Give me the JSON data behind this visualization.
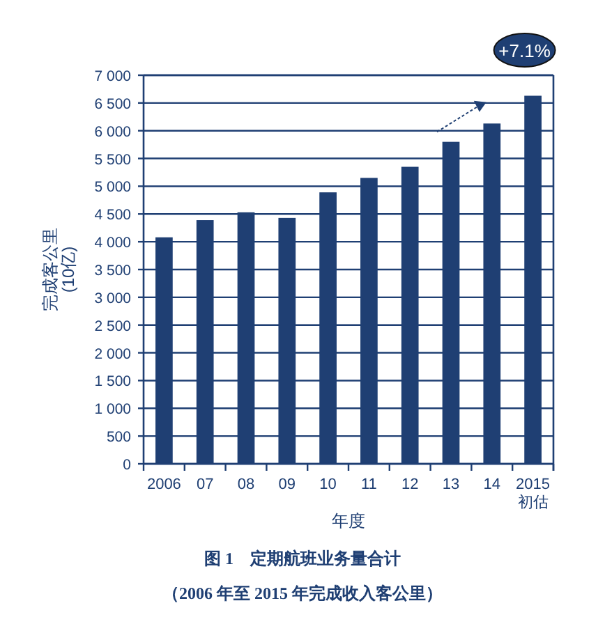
{
  "chart_data": {
    "type": "bar",
    "title": "图 1　定期航班业务量合计",
    "subtitle": "（2006 年至 2015 年完成收入客公里）",
    "xlabel": "年度",
    "ylabel": "完成客公里\n(10亿)",
    "categories": [
      "2006",
      "07",
      "08",
      "09",
      "10",
      "11",
      "12",
      "13",
      "14",
      "2015\n初估"
    ],
    "series": [
      {
        "color": "#1f3f73",
        "values": [
          4080,
          4390,
          4530,
          4430,
          4890,
          5150,
          5350,
          5800,
          6130,
          6630
        ]
      }
    ],
    "ylim": [
      0,
      7000
    ],
    "yticks": [
      0,
      500,
      {
        "value": 1000,
        "label": "1 000"
      },
      {
        "value": 1500,
        "label": "1 500"
      },
      {
        "value": 2000,
        "label": "2 000"
      },
      {
        "value": 2500,
        "label": "2 500"
      },
      {
        "value": 3000,
        "label": "3 000"
      },
      {
        "value": 3500,
        "label": "3 500"
      },
      {
        "value": 4000,
        "label": "4 000"
      },
      {
        "value": 4500,
        "label": "4 500"
      },
      {
        "value": 5000,
        "label": "5 000"
      },
      {
        "value": 5500,
        "label": "5 500"
      },
      {
        "value": 6000,
        "label": "6 000"
      },
      {
        "value": 6500,
        "label": "6 500"
      },
      {
        "value": 7000,
        "label": "7 000"
      }
    ],
    "grid": "y",
    "annotations": [
      "+7.1%"
    ]
  }
}
